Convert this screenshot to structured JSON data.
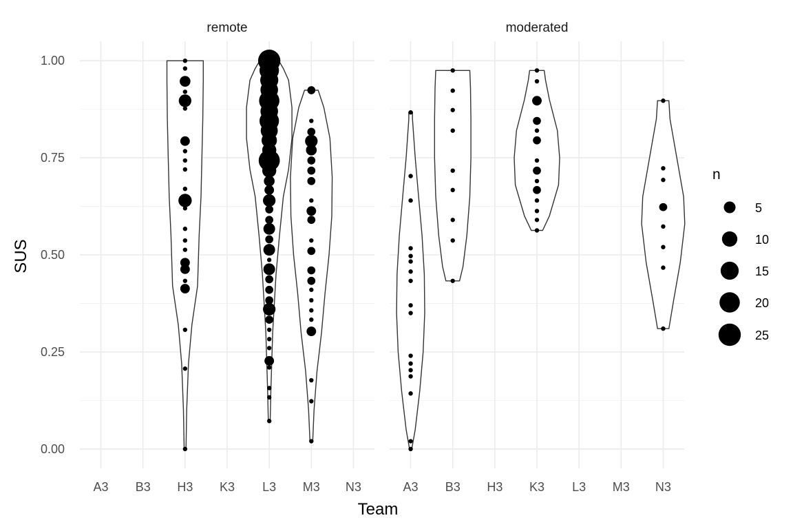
{
  "chart_data": {
    "type": "violin+scatter",
    "xlabel": "Team",
    "ylabel": "SUS",
    "ylim": [
      -0.05,
      1.05
    ],
    "yticks": [
      0.0,
      0.25,
      0.5,
      0.75,
      1.0
    ],
    "ytick_labels": [
      "0.00",
      "0.25",
      "0.50",
      "0.75",
      "1.00"
    ],
    "categories": [
      "A3",
      "B3",
      "H3",
      "K3",
      "L3",
      "M3",
      "N3"
    ],
    "grid": true,
    "legend": {
      "title": "n",
      "position": "right",
      "sizes": [
        5,
        10,
        15,
        20,
        25
      ],
      "labels": [
        "5",
        "10",
        "15",
        "20",
        "25"
      ]
    },
    "facets": [
      {
        "label": "remote",
        "violins": [
          {
            "team": "H3",
            "min": 0.0,
            "max": 1.0,
            "profile": [
              [
                0.0,
                0.04
              ],
              [
                0.1,
                0.07
              ],
              [
                0.22,
                0.15
              ],
              [
                0.32,
                0.3
              ],
              [
                0.42,
                0.55
              ],
              [
                0.55,
                0.62
              ],
              [
                0.65,
                0.7
              ],
              [
                0.75,
                0.74
              ],
              [
                0.85,
                0.78
              ],
              [
                0.95,
                0.8
              ],
              [
                1.0,
                0.8
              ]
            ]
          },
          {
            "team": "L3",
            "min": 0.072,
            "max": 1.0,
            "profile": [
              [
                0.072,
                0.04
              ],
              [
                0.15,
                0.07
              ],
              [
                0.3,
                0.15
              ],
              [
                0.45,
                0.3
              ],
              [
                0.55,
                0.45
              ],
              [
                0.65,
                0.62
              ],
              [
                0.72,
                0.85
              ],
              [
                0.8,
                1.0
              ],
              [
                0.88,
                1.0
              ],
              [
                0.95,
                0.85
              ],
              [
                0.98,
                0.62
              ],
              [
                1.0,
                0.42
              ]
            ]
          },
          {
            "team": "M3",
            "min": 0.02,
            "max": 0.924,
            "profile": [
              [
                0.02,
                0.06
              ],
              [
                0.1,
                0.12
              ],
              [
                0.2,
                0.25
              ],
              [
                0.3,
                0.45
              ],
              [
                0.4,
                0.6
              ],
              [
                0.5,
                0.78
              ],
              [
                0.6,
                0.9
              ],
              [
                0.7,
                0.92
              ],
              [
                0.8,
                0.82
              ],
              [
                0.88,
                0.55
              ],
              [
                0.924,
                0.3
              ]
            ]
          }
        ],
        "points": [
          {
            "team": "H3",
            "y": 1.0,
            "n": 1
          },
          {
            "team": "H3",
            "y": 0.98,
            "n": 1
          },
          {
            "team": "H3",
            "y": 0.947,
            "n": 4
          },
          {
            "team": "H3",
            "y": 0.92,
            "n": 1
          },
          {
            "team": "H3",
            "y": 0.897,
            "n": 6
          },
          {
            "team": "H3",
            "y": 0.877,
            "n": 1
          },
          {
            "team": "H3",
            "y": 0.793,
            "n": 3
          },
          {
            "team": "H3",
            "y": 0.767,
            "n": 1
          },
          {
            "team": "H3",
            "y": 0.743,
            "n": 1
          },
          {
            "team": "H3",
            "y": 0.72,
            "n": 1
          },
          {
            "team": "H3",
            "y": 0.67,
            "n": 1
          },
          {
            "team": "H3",
            "y": 0.64,
            "n": 7
          },
          {
            "team": "H3",
            "y": 0.62,
            "n": 1
          },
          {
            "team": "H3",
            "y": 0.567,
            "n": 1
          },
          {
            "team": "H3",
            "y": 0.537,
            "n": 1
          },
          {
            "team": "H3",
            "y": 0.513,
            "n": 1
          },
          {
            "team": "H3",
            "y": 0.48,
            "n": 3
          },
          {
            "team": "H3",
            "y": 0.463,
            "n": 3
          },
          {
            "team": "H3",
            "y": 0.433,
            "n": 1
          },
          {
            "team": "H3",
            "y": 0.413,
            "n": 3
          },
          {
            "team": "H3",
            "y": 0.307,
            "n": 1
          },
          {
            "team": "H3",
            "y": 0.207,
            "n": 1
          },
          {
            "team": "H3",
            "y": 0.0,
            "n": 1
          },
          {
            "team": "L3",
            "y": 1.0,
            "n": 25
          },
          {
            "team": "L3",
            "y": 0.975,
            "n": 18
          },
          {
            "team": "L3",
            "y": 0.95,
            "n": 15
          },
          {
            "team": "L3",
            "y": 0.925,
            "n": 14
          },
          {
            "team": "L3",
            "y": 0.897,
            "n": 20
          },
          {
            "team": "L3",
            "y": 0.87,
            "n": 14
          },
          {
            "team": "L3",
            "y": 0.845,
            "n": 18
          },
          {
            "team": "L3",
            "y": 0.82,
            "n": 13
          },
          {
            "team": "L3",
            "y": 0.795,
            "n": 10
          },
          {
            "team": "L3",
            "y": 0.77,
            "n": 8
          },
          {
            "team": "L3",
            "y": 0.743,
            "n": 22
          },
          {
            "team": "L3",
            "y": 0.717,
            "n": 8
          },
          {
            "team": "L3",
            "y": 0.69,
            "n": 4
          },
          {
            "team": "L3",
            "y": 0.667,
            "n": 3
          },
          {
            "team": "L3",
            "y": 0.64,
            "n": 6
          },
          {
            "team": "L3",
            "y": 0.617,
            "n": 2
          },
          {
            "team": "L3",
            "y": 0.59,
            "n": 2
          },
          {
            "team": "L3",
            "y": 0.567,
            "n": 5
          },
          {
            "team": "L3",
            "y": 0.54,
            "n": 2
          },
          {
            "team": "L3",
            "y": 0.513,
            "n": 5
          },
          {
            "team": "L3",
            "y": 0.487,
            "n": 1
          },
          {
            "team": "L3",
            "y": 0.463,
            "n": 5
          },
          {
            "team": "L3",
            "y": 0.437,
            "n": 2
          },
          {
            "team": "L3",
            "y": 0.41,
            "n": 2
          },
          {
            "team": "L3",
            "y": 0.383,
            "n": 2
          },
          {
            "team": "L3",
            "y": 0.36,
            "n": 6
          },
          {
            "team": "L3",
            "y": 0.333,
            "n": 2
          },
          {
            "team": "L3",
            "y": 0.307,
            "n": 1
          },
          {
            "team": "L3",
            "y": 0.283,
            "n": 1
          },
          {
            "team": "L3",
            "y": 0.26,
            "n": 1
          },
          {
            "team": "L3",
            "y": 0.227,
            "n": 3
          },
          {
            "team": "L3",
            "y": 0.21,
            "n": 1
          },
          {
            "team": "L3",
            "y": 0.157,
            "n": 1
          },
          {
            "team": "L3",
            "y": 0.133,
            "n": 1
          },
          {
            "team": "L3",
            "y": 0.072,
            "n": 1
          },
          {
            "team": "M3",
            "y": 0.924,
            "n": 2
          },
          {
            "team": "M3",
            "y": 0.845,
            "n": 1
          },
          {
            "team": "M3",
            "y": 0.817,
            "n": 2
          },
          {
            "team": "M3",
            "y": 0.793,
            "n": 6
          },
          {
            "team": "M3",
            "y": 0.77,
            "n": 4
          },
          {
            "team": "M3",
            "y": 0.743,
            "n": 2
          },
          {
            "team": "M3",
            "y": 0.717,
            "n": 2
          },
          {
            "team": "M3",
            "y": 0.69,
            "n": 2
          },
          {
            "team": "M3",
            "y": 0.64,
            "n": 1
          },
          {
            "team": "M3",
            "y": 0.613,
            "n": 3
          },
          {
            "team": "M3",
            "y": 0.59,
            "n": 2
          },
          {
            "team": "M3",
            "y": 0.537,
            "n": 1
          },
          {
            "team": "M3",
            "y": 0.51,
            "n": 2
          },
          {
            "team": "M3",
            "y": 0.46,
            "n": 2
          },
          {
            "team": "M3",
            "y": 0.433,
            "n": 2
          },
          {
            "team": "M3",
            "y": 0.41,
            "n": 1
          },
          {
            "team": "M3",
            "y": 0.383,
            "n": 1
          },
          {
            "team": "M3",
            "y": 0.357,
            "n": 1
          },
          {
            "team": "M3",
            "y": 0.333,
            "n": 1
          },
          {
            "team": "M3",
            "y": 0.303,
            "n": 3
          },
          {
            "team": "M3",
            "y": 0.177,
            "n": 1
          },
          {
            "team": "M3",
            "y": 0.123,
            "n": 1
          },
          {
            "team": "M3",
            "y": 0.02,
            "n": 1
          }
        ]
      },
      {
        "label": "moderated",
        "violins": [
          {
            "team": "A3",
            "min": 0.0,
            "max": 0.867,
            "profile": [
              [
                0.0,
                0.05
              ],
              [
                0.05,
                0.2
              ],
              [
                0.15,
                0.4
              ],
              [
                0.25,
                0.55
              ],
              [
                0.35,
                0.62
              ],
              [
                0.45,
                0.6
              ],
              [
                0.55,
                0.5
              ],
              [
                0.65,
                0.35
              ],
              [
                0.75,
                0.2
              ],
              [
                0.85,
                0.08
              ],
              [
                0.867,
                0.08
              ]
            ]
          },
          {
            "team": "B3",
            "min": 0.433,
            "max": 0.975,
            "profile": [
              [
                0.433,
                0.3
              ],
              [
                0.47,
                0.45
              ],
              [
                0.55,
                0.62
              ],
              [
                0.65,
                0.75
              ],
              [
                0.75,
                0.8
              ],
              [
                0.85,
                0.8
              ],
              [
                0.93,
                0.78
              ],
              [
                0.975,
                0.75
              ]
            ]
          },
          {
            "team": "K3",
            "min": 0.563,
            "max": 0.975,
            "profile": [
              [
                0.563,
                0.25
              ],
              [
                0.6,
                0.55
              ],
              [
                0.68,
                0.95
              ],
              [
                0.75,
                1.0
              ],
              [
                0.82,
                0.9
              ],
              [
                0.9,
                0.55
              ],
              [
                0.95,
                0.38
              ],
              [
                0.975,
                0.32
              ]
            ]
          },
          {
            "team": "N3",
            "min": 0.31,
            "max": 0.897,
            "profile": [
              [
                0.31,
                0.25
              ],
              [
                0.38,
                0.45
              ],
              [
                0.48,
                0.75
              ],
              [
                0.58,
                0.95
              ],
              [
                0.65,
                0.9
              ],
              [
                0.75,
                0.6
              ],
              [
                0.85,
                0.3
              ],
              [
                0.897,
                0.25
              ]
            ]
          }
        ],
        "points": [
          {
            "team": "A3",
            "y": 0.867,
            "n": 1
          },
          {
            "team": "A3",
            "y": 0.703,
            "n": 1
          },
          {
            "team": "A3",
            "y": 0.64,
            "n": 1
          },
          {
            "team": "A3",
            "y": 0.517,
            "n": 1
          },
          {
            "team": "A3",
            "y": 0.497,
            "n": 1
          },
          {
            "team": "A3",
            "y": 0.483,
            "n": 1
          },
          {
            "team": "A3",
            "y": 0.457,
            "n": 1
          },
          {
            "team": "A3",
            "y": 0.433,
            "n": 1
          },
          {
            "team": "A3",
            "y": 0.37,
            "n": 1
          },
          {
            "team": "A3",
            "y": 0.35,
            "n": 1
          },
          {
            "team": "A3",
            "y": 0.24,
            "n": 1
          },
          {
            "team": "A3",
            "y": 0.22,
            "n": 1
          },
          {
            "team": "A3",
            "y": 0.203,
            "n": 1
          },
          {
            "team": "A3",
            "y": 0.187,
            "n": 1
          },
          {
            "team": "A3",
            "y": 0.143,
            "n": 1
          },
          {
            "team": "A3",
            "y": 0.02,
            "n": 1
          },
          {
            "team": "A3",
            "y": 0.0,
            "n": 1
          },
          {
            "team": "B3",
            "y": 0.975,
            "n": 1
          },
          {
            "team": "B3",
            "y": 0.923,
            "n": 1
          },
          {
            "team": "B3",
            "y": 0.873,
            "n": 1
          },
          {
            "team": "B3",
            "y": 0.82,
            "n": 1
          },
          {
            "team": "B3",
            "y": 0.717,
            "n": 1
          },
          {
            "team": "B3",
            "y": 0.667,
            "n": 1
          },
          {
            "team": "B3",
            "y": 0.59,
            "n": 1
          },
          {
            "team": "B3",
            "y": 0.537,
            "n": 1
          },
          {
            "team": "B3",
            "y": 0.433,
            "n": 1
          },
          {
            "team": "K3",
            "y": 0.975,
            "n": 1
          },
          {
            "team": "K3",
            "y": 0.947,
            "n": 1
          },
          {
            "team": "K3",
            "y": 0.897,
            "n": 3
          },
          {
            "team": "K3",
            "y": 0.845,
            "n": 2
          },
          {
            "team": "K3",
            "y": 0.82,
            "n": 1
          },
          {
            "team": "K3",
            "y": 0.795,
            "n": 2
          },
          {
            "team": "K3",
            "y": 0.743,
            "n": 1
          },
          {
            "team": "K3",
            "y": 0.717,
            "n": 2
          },
          {
            "team": "K3",
            "y": 0.69,
            "n": 1
          },
          {
            "team": "K3",
            "y": 0.667,
            "n": 2
          },
          {
            "team": "K3",
            "y": 0.64,
            "n": 1
          },
          {
            "team": "K3",
            "y": 0.613,
            "n": 1
          },
          {
            "team": "K3",
            "y": 0.59,
            "n": 1
          },
          {
            "team": "K3",
            "y": 0.563,
            "n": 1
          },
          {
            "team": "N3",
            "y": 0.897,
            "n": 1
          },
          {
            "team": "N3",
            "y": 0.723,
            "n": 1
          },
          {
            "team": "N3",
            "y": 0.693,
            "n": 1
          },
          {
            "team": "N3",
            "y": 0.623,
            "n": 2
          },
          {
            "team": "N3",
            "y": 0.573,
            "n": 1
          },
          {
            "team": "N3",
            "y": 0.52,
            "n": 1
          },
          {
            "team": "N3",
            "y": 0.467,
            "n": 1
          },
          {
            "team": "N3",
            "y": 0.31,
            "n": 1
          }
        ]
      }
    ]
  }
}
